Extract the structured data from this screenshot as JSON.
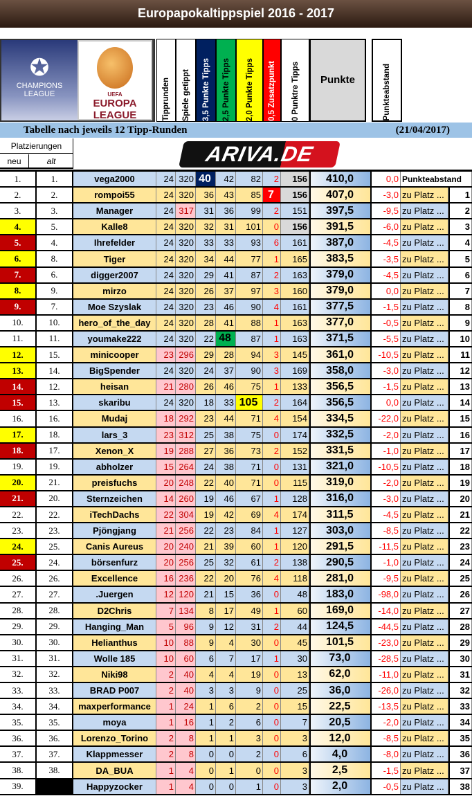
{
  "title": "Europapokaltippspiel 2016 - 2017",
  "logos": {
    "cl": "CHAMPIONS LEAGUE",
    "el_top": "UEFA",
    "el": "EUROPA LEAGUE",
    "sponsor": "ARIVA.DE"
  },
  "headers": [
    "Tipprunden",
    "Spiele getippt",
    "3,5 Punkte Tipps",
    "2,5 Punkte Tipps",
    "2,0 Punkte Tipps",
    "0,5 Zusatzpunkt",
    "0 Punktre Tipps"
  ],
  "header_colors": [
    "#ffffff",
    "#ffffff",
    "#002060",
    "#00b050",
    "#ffff00",
    "#ff0000",
    "#ffffff"
  ],
  "punkte_label": "Punkte",
  "abstand_label": "Punkteabstand",
  "subtitle": "Tabelle nach jeweils 12 Tipp-Runden",
  "date": "(21/04/2017)",
  "placements": {
    "title": "Platzierungen",
    "neu": "neu",
    "alt": "alt"
  },
  "status_colors": {
    "up": "#ffff00",
    "down": "#c00000",
    "new": "#000000"
  },
  "zu_label": "zu Platz ...",
  "rows": [
    [
      "1.",
      "1.",
      "vega2000",
      24,
      320,
      40,
      42,
      82,
      2,
      156,
      "410,0",
      "0,0",
      "Punkteabstand",
      ""
    ],
    [
      "2.",
      "2.",
      "rompoi55",
      24,
      320,
      36,
      43,
      85,
      7,
      156,
      "407,0",
      "-3,0",
      "zu Platz ...",
      "1"
    ],
    [
      "3.",
      "3.",
      "Manager",
      24,
      317,
      31,
      36,
      99,
      2,
      151,
      "397,5",
      "-9,5",
      "zu Platz ...",
      "2"
    ],
    [
      "4.",
      "5.",
      "Kalle8",
      24,
      320,
      32,
      31,
      101,
      0,
      156,
      "391,5",
      "-6,0",
      "zu Platz ...",
      "3"
    ],
    [
      "5.",
      "4.",
      "Ihrefelder",
      24,
      320,
      33,
      33,
      93,
      6,
      161,
      "387,0",
      "-4,5",
      "zu Platz ...",
      "4"
    ],
    [
      "6.",
      "8.",
      "Tiger",
      24,
      320,
      34,
      44,
      77,
      1,
      165,
      "383,5",
      "-3,5",
      "zu Platz ...",
      "5"
    ],
    [
      "7.",
      "6.",
      "digger2007",
      24,
      320,
      29,
      41,
      87,
      2,
      163,
      "379,0",
      "-4,5",
      "zu Platz ...",
      "6"
    ],
    [
      "8.",
      "9.",
      "mirzo",
      24,
      320,
      26,
      37,
      97,
      3,
      160,
      "379,0",
      "0,0",
      "zu Platz ...",
      "7"
    ],
    [
      "9.",
      "7.",
      "Moe Szyslak",
      24,
      320,
      23,
      46,
      90,
      4,
      161,
      "377,5",
      "-1,5",
      "zu Platz ...",
      "8"
    ],
    [
      "10.",
      "10.",
      "hero_of_the_day",
      24,
      320,
      28,
      41,
      88,
      1,
      163,
      "377,0",
      "-0,5",
      "zu Platz ...",
      "9"
    ],
    [
      "11.",
      "11.",
      "youmake222",
      24,
      320,
      22,
      48,
      87,
      1,
      163,
      "371,5",
      "-5,5",
      "zu Platz ...",
      "10"
    ],
    [
      "12.",
      "15.",
      "minicooper",
      23,
      296,
      29,
      28,
      94,
      3,
      145,
      "361,0",
      "-10,5",
      "zu Platz ...",
      "11"
    ],
    [
      "13.",
      "14.",
      "BigSpender",
      24,
      320,
      24,
      37,
      90,
      3,
      169,
      "358,0",
      "-3,0",
      "zu Platz ...",
      "12"
    ],
    [
      "14.",
      "12.",
      "heisan",
      21,
      280,
      26,
      46,
      75,
      1,
      133,
      "356,5",
      "-1,5",
      "zu Platz ...",
      "13"
    ],
    [
      "15.",
      "13.",
      "skaribu",
      24,
      320,
      18,
      33,
      105,
      2,
      164,
      "356,5",
      "0,0",
      "zu Platz ...",
      "14"
    ],
    [
      "16.",
      "16.",
      "Mudaj",
      18,
      292,
      23,
      44,
      71,
      4,
      154,
      "334,5",
      "-22,0",
      "zu Platz ...",
      "15"
    ],
    [
      "17.",
      "18.",
      "lars_3",
      23,
      312,
      25,
      38,
      75,
      0,
      174,
      "332,5",
      "-2,0",
      "zu Platz ...",
      "16"
    ],
    [
      "18.",
      "17.",
      "Xenon_X",
      19,
      288,
      27,
      36,
      73,
      2,
      152,
      "331,5",
      "-1,0",
      "zu Platz ...",
      "17"
    ],
    [
      "19.",
      "19.",
      "abholzer",
      15,
      264,
      24,
      38,
      71,
      0,
      131,
      "321,0",
      "-10,5",
      "zu Platz ...",
      "18"
    ],
    [
      "20.",
      "21.",
      "preisfuchs",
      20,
      248,
      22,
      40,
      71,
      0,
      115,
      "319,0",
      "-2,0",
      "zu Platz ...",
      "19"
    ],
    [
      "21.",
      "20.",
      "Sternzeichen",
      14,
      260,
      19,
      46,
      67,
      1,
      128,
      "316,0",
      "-3,0",
      "zu Platz ...",
      "20"
    ],
    [
      "22.",
      "22.",
      "iTechDachs",
      22,
      304,
      19,
      42,
      69,
      4,
      174,
      "311,5",
      "-4,5",
      "zu Platz ...",
      "21"
    ],
    [
      "23.",
      "23.",
      "Pjöngjang",
      21,
      256,
      22,
      23,
      84,
      1,
      127,
      "303,0",
      "-8,5",
      "zu Platz ...",
      "22"
    ],
    [
      "24.",
      "25.",
      "Canis Aureus",
      20,
      240,
      21,
      39,
      60,
      1,
      120,
      "291,5",
      "-11,5",
      "zu Platz ...",
      "23"
    ],
    [
      "25.",
      "24.",
      "börsenfurz",
      20,
      256,
      25,
      32,
      61,
      2,
      138,
      "290,5",
      "-1,0",
      "zu Platz ...",
      "24"
    ],
    [
      "26.",
      "26.",
      "Excellence",
      16,
      236,
      22,
      20,
      76,
      4,
      118,
      "281,0",
      "-9,5",
      "zu Platz ...",
      "25"
    ],
    [
      "27.",
      "27.",
      ".Juergen",
      12,
      120,
      21,
      15,
      36,
      0,
      48,
      "183,0",
      "-98,0",
      "zu Platz ...",
      "26"
    ],
    [
      "28.",
      "28.",
      "D2Chris",
      7,
      134,
      8,
      17,
      49,
      1,
      60,
      "169,0",
      "-14,0",
      "zu Platz ...",
      "27"
    ],
    [
      "29.",
      "29.",
      "Hanging_Man",
      5,
      96,
      9,
      12,
      31,
      2,
      44,
      "124,5",
      "-44,5",
      "zu Platz ...",
      "28"
    ],
    [
      "30.",
      "30.",
      "Helianthus",
      10,
      88,
      9,
      4,
      30,
      0,
      45,
      "101,5",
      "-23,0",
      "zu Platz ...",
      "29"
    ],
    [
      "31.",
      "31.",
      "Wolle 185",
      10,
      60,
      6,
      7,
      17,
      1,
      30,
      "73,0",
      "-28,5",
      "zu Platz ...",
      "30"
    ],
    [
      "32.",
      "32.",
      "Niki98",
      2,
      40,
      4,
      4,
      19,
      0,
      13,
      "62,0",
      "-11,0",
      "zu Platz ...",
      "31"
    ],
    [
      "33.",
      "33.",
      "BRAD P007",
      2,
      40,
      3,
      3,
      9,
      0,
      25,
      "36,0",
      "-26,0",
      "zu Platz ...",
      "32"
    ],
    [
      "34.",
      "34.",
      "maxperformance",
      1,
      24,
      1,
      6,
      2,
      0,
      15,
      "22,5",
      "-13,5",
      "zu Platz ...",
      "33"
    ],
    [
      "35.",
      "35.",
      "moya",
      1,
      16,
      1,
      2,
      6,
      0,
      7,
      "20,5",
      "-2,0",
      "zu Platz ...",
      "34"
    ],
    [
      "36.",
      "36.",
      "Lorenzo_Torino",
      2,
      8,
      1,
      1,
      3,
      0,
      3,
      "12,0",
      "-8,5",
      "zu Platz ...",
      "35"
    ],
    [
      "37.",
      "37.",
      "Klappmesser",
      2,
      8,
      0,
      0,
      2,
      0,
      6,
      "4,0",
      "-8,0",
      "zu Platz ...",
      "36"
    ],
    [
      "38.",
      "38.",
      "DA_BUA",
      1,
      4,
      0,
      1,
      0,
      0,
      3,
      "2,5",
      "-1,5",
      "zu Platz ...",
      "37"
    ],
    [
      "39.",
      "",
      "Happyzocker",
      1,
      4,
      0,
      0,
      1,
      0,
      3,
      "2,0",
      "-0,5",
      "zu Platz ...",
      "38"
    ]
  ],
  "highlights": [
    {
      "row": 0,
      "col": 5,
      "color": "#002060"
    },
    {
      "row": 1,
      "col": 8,
      "color": "#ff0000"
    },
    {
      "row": 10,
      "col": 6,
      "color": "#00b050"
    },
    {
      "row": 14,
      "col": 7,
      "color": "#ffff00"
    }
  ]
}
